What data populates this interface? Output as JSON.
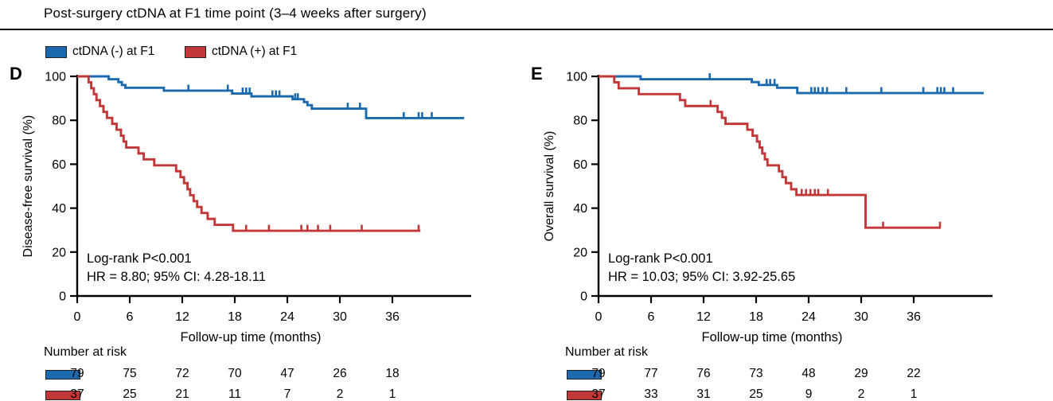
{
  "header": {
    "title": "Post-surgery ctDNA at F1 time point (3–4 weeks after surgery)"
  },
  "legend": [
    {
      "label": "ctDNA (-) at F1",
      "color": "#1b6aad"
    },
    {
      "label": "ctDNA (+) at F1",
      "color": "#c23839"
    }
  ],
  "risk_label": "Number at risk",
  "colors": {
    "negative": "#1b6aad",
    "positive": "#c23839",
    "axis": "#000000"
  },
  "chart_data": [
    {
      "type": "line",
      "subtype": "kaplan-meier-step",
      "panel": "D",
      "ylabel": "Disease-free survival (%)",
      "xlabel": "Follow-up time (months)",
      "xlim": [
        0,
        45
      ],
      "ylim": [
        0,
        100
      ],
      "xticks": [
        0,
        6,
        12,
        18,
        24,
        30,
        36
      ],
      "yticks": [
        0,
        20,
        40,
        60,
        80,
        100
      ],
      "grid": false,
      "annotation": [
        "Log-rank P<0.001",
        "HR = 8.80; 95% CI: 4.28-18.11"
      ],
      "series": [
        {
          "name": "ctDNA (-) at F1",
          "color": "#1b6aad",
          "start": [
            0,
            100
          ],
          "steps": [
            [
              3.6,
              98.7
            ],
            [
              4.7,
              97.4
            ],
            [
              5.1,
              96.1
            ],
            [
              5.5,
              94.8
            ],
            [
              9.9,
              93.5
            ],
            [
              17.7,
              92.2
            ],
            [
              19.9,
              90.9
            ],
            [
              24.6,
              89.6
            ],
            [
              25.9,
              88.3
            ],
            [
              26.3,
              86.9
            ],
            [
              26.8,
              85.3
            ],
            [
              33,
              81
            ]
          ],
          "end": 44.2,
          "censors": [
            12.7,
            17.2,
            18.9,
            19.3,
            19.7,
            22.3,
            22.7,
            23.1,
            24.9,
            25.2,
            30.9,
            32.3,
            37.3,
            39,
            39.4,
            40.5
          ]
        },
        {
          "name": "ctDNA (+) at F1",
          "color": "#c23839",
          "start": [
            0,
            100
          ],
          "steps": [
            [
              1.3,
              97.3
            ],
            [
              1.6,
              94.6
            ],
            [
              1.9,
              91.9
            ],
            [
              2.2,
              89.2
            ],
            [
              2.6,
              86.5
            ],
            [
              3,
              83.8
            ],
            [
              3.4,
              81.1
            ],
            [
              4,
              78.4
            ],
            [
              4.5,
              75.7
            ],
            [
              5,
              73
            ],
            [
              5.3,
              70.3
            ],
            [
              5.6,
              67.6
            ],
            [
              7,
              64.9
            ],
            [
              7.6,
              62.2
            ],
            [
              8.8,
              59.5
            ],
            [
              11.3,
              56.8
            ],
            [
              11.8,
              54.1
            ],
            [
              12.2,
              51.4
            ],
            [
              12.6,
              48.6
            ],
            [
              12.9,
              45.9
            ],
            [
              13.3,
              43.2
            ],
            [
              13.7,
              40.5
            ],
            [
              14.2,
              37.8
            ],
            [
              14.9,
              35.1
            ],
            [
              15.7,
              32.4
            ],
            [
              17.8,
              29.7
            ]
          ],
          "end": 39.2,
          "censors": [
            19.3,
            21.9,
            25.6,
            26.3,
            27.5,
            28.9,
            32.5,
            39
          ]
        }
      ],
      "risk_rows": [
        {
          "name": "ctDNA (-) at F1",
          "color": "#1b6aad",
          "values": [
            79,
            75,
            72,
            70,
            47,
            26,
            18
          ]
        },
        {
          "name": "ctDNA (+) at F1",
          "color": "#c23839",
          "values": [
            37,
            25,
            21,
            11,
            7,
            2,
            1
          ]
        }
      ]
    },
    {
      "type": "line",
      "subtype": "kaplan-meier-step",
      "panel": "E",
      "ylabel": "Overall survival (%)",
      "xlabel": "Follow-up time (months)",
      "xlim": [
        0,
        45
      ],
      "ylim": [
        0,
        100
      ],
      "xticks": [
        0,
        6,
        12,
        18,
        24,
        30,
        36
      ],
      "yticks": [
        0,
        20,
        40,
        60,
        80,
        100
      ],
      "grid": false,
      "annotation": [
        "Log-rank P<0.001",
        "HR = 10.03; 95% CI: 3.92-25.65"
      ],
      "series": [
        {
          "name": "ctDNA (-) at F1",
          "color": "#1b6aad",
          "start": [
            0,
            100
          ],
          "steps": [
            [
              4.8,
              98.7
            ],
            [
              17.5,
              97.4
            ],
            [
              18.3,
              96.1
            ],
            [
              20.4,
              94.8
            ],
            [
              22.7,
              92.4
            ]
          ],
          "end": 44,
          "censors": [
            12.7,
            19.2,
            19.6,
            20.1,
            24.3,
            24.7,
            25.1,
            25.6,
            26.1,
            28.3,
            32.3,
            37.1,
            38.7,
            39.1,
            39.5,
            40.5
          ]
        },
        {
          "name": "ctDNA (+) at F1",
          "color": "#c23839",
          "start": [
            0,
            100
          ],
          "steps": [
            [
              1.8,
              97.3
            ],
            [
              2.3,
              94.6
            ],
            [
              4.6,
              91.9
            ],
            [
              9.3,
              89.2
            ],
            [
              9.9,
              86.5
            ],
            [
              13.6,
              83.8
            ],
            [
              14.1,
              81.1
            ],
            [
              14.5,
              78.4
            ],
            [
              17,
              75.7
            ],
            [
              17.6,
              73
            ],
            [
              18.1,
              70.3
            ],
            [
              18.4,
              67.6
            ],
            [
              18.7,
              64.9
            ],
            [
              19,
              62.2
            ],
            [
              19.3,
              59.5
            ],
            [
              20.6,
              56.8
            ],
            [
              21,
              54.1
            ],
            [
              21.4,
              51.4
            ],
            [
              22,
              48.6
            ],
            [
              22.6,
              46
            ],
            [
              30.5,
              31.1
            ]
          ],
          "end": 39.1,
          "censors": [
            12.8,
            23.2,
            23.7,
            24.2,
            24.7,
            25.1,
            26.2,
            32.5,
            39
          ]
        }
      ],
      "risk_rows": [
        {
          "name": "ctDNA (-) at F1",
          "color": "#1b6aad",
          "values": [
            79,
            77,
            76,
            73,
            48,
            29,
            22
          ]
        },
        {
          "name": "ctDNA (+) at F1",
          "color": "#c23839",
          "values": [
            37,
            33,
            31,
            25,
            9,
            2,
            1
          ]
        }
      ]
    }
  ]
}
